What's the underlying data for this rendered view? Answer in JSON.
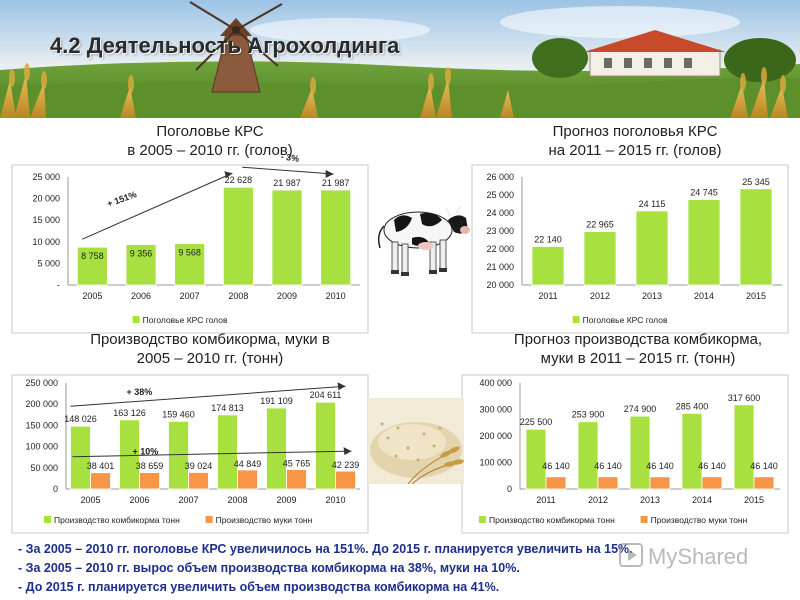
{
  "slide": {
    "title": "4.2 Деятельность Агрохолдинга",
    "watermark": "MyShared"
  },
  "chart_titles": [
    [
      "Поголовье КРС",
      "в 2005 – 2010 гг. (голов)"
    ],
    [
      "Прогноз поголовья КРС",
      "на 2011 – 2015 гг. (голов)"
    ],
    [
      "Производство комбикорма, муки в",
      "2005 – 2010 гг. (тонн)"
    ],
    [
      "Прогноз производства комбикорма,",
      "муки в 2011 – 2015 гг. (тонн)"
    ]
  ],
  "conclusions": [
    "- За 2005 – 2010 гг. поголовье КРС увеличилось  на 151%. До 2015 г. планируется  увеличить  на 15%.",
    "- За 2005 – 2010 гг. вырос объем производства  комбикорма на 38%, муки на 10%.",
    "- До 2015 г. планируется  увеличить  объем производства  комбикорма на 41%."
  ],
  "colors": {
    "green_bar": "#a8e040",
    "orange_bar": "#f79646",
    "frame": "#c8c8c8",
    "conclusion_text": "#1c2f8f"
  },
  "chart_data": [
    {
      "type": "bar",
      "categories": [
        "2005",
        "2006",
        "2007",
        "2008",
        "2009",
        "2010"
      ],
      "series": [
        {
          "name": "Поголовье КРС голов",
          "values": [
            8758,
            9356,
            9568,
            22628,
            21987,
            21987
          ],
          "labels": [
            "8 758",
            "9 356",
            "9 568",
            "22 628",
            "21 987",
            "21 987"
          ]
        }
      ],
      "ylim": [
        0,
        25000
      ],
      "yticks": [
        "-",
        "5 000",
        "10 000",
        "15 000",
        "20 000",
        "25 000"
      ],
      "annotations": [
        "+ 151%",
        "- 3%"
      ],
      "legend": "bottom",
      "grid": false
    },
    {
      "type": "bar",
      "categories": [
        "2011",
        "2012",
        "2013",
        "2014",
        "2015"
      ],
      "series": [
        {
          "name": "Поголовье КРС голов",
          "values": [
            22140,
            22965,
            24115,
            24745,
            25345
          ],
          "labels": [
            "22 140",
            "22 965",
            "24 115",
            "24 745",
            "25 345"
          ]
        }
      ],
      "ylim": [
        20000,
        26000
      ],
      "yticks": [
        "20 000",
        "21 000",
        "22 000",
        "23 000",
        "24 000",
        "25 000",
        "26 000"
      ],
      "legend": "bottom",
      "grid": false
    },
    {
      "type": "bar",
      "categories": [
        "2005",
        "2006",
        "2007",
        "2008",
        "2009",
        "2010"
      ],
      "series": [
        {
          "name": "Производство комбикорма тонн",
          "values": [
            148026,
            163126,
            159460,
            174813,
            191109,
            204611
          ],
          "labels": [
            "148 026",
            "163 126",
            "159 460",
            "174 813",
            "191 109",
            "204 611"
          ]
        },
        {
          "name": "Производство муки тонн",
          "values": [
            38401,
            38659,
            39024,
            44849,
            45765,
            42239
          ],
          "labels": [
            "38 401",
            "38 659",
            "39 024",
            "44 849",
            "45 765",
            "42 239"
          ]
        }
      ],
      "ylim": [
        0,
        250000
      ],
      "yticks": [
        "0",
        "50 000",
        "100 000",
        "150 000",
        "200 000",
        "250 000"
      ],
      "annotations": [
        "+ 38%",
        "+ 10%"
      ],
      "legend": "bottom",
      "grid": false
    },
    {
      "type": "bar",
      "categories": [
        "2011",
        "2012",
        "2013",
        "2014",
        "2015"
      ],
      "series": [
        {
          "name": "Производство комбикорма тонн",
          "values": [
            225500,
            253900,
            274900,
            285400,
            317600
          ],
          "labels": [
            "225 500",
            "253 900",
            "274 900",
            "285 400",
            "317 600"
          ]
        },
        {
          "name": "Производство муки тонн",
          "values": [
            46140,
            46140,
            46140,
            46140,
            46140
          ],
          "labels": [
            "46 140",
            "46 140",
            "46 140",
            "46 140",
            "46 140"
          ]
        }
      ],
      "ylim": [
        0,
        400000
      ],
      "yticks": [
        "0",
        "100 000",
        "200 000",
        "300 000",
        "400 000"
      ],
      "legend": "bottom",
      "grid": false
    }
  ]
}
